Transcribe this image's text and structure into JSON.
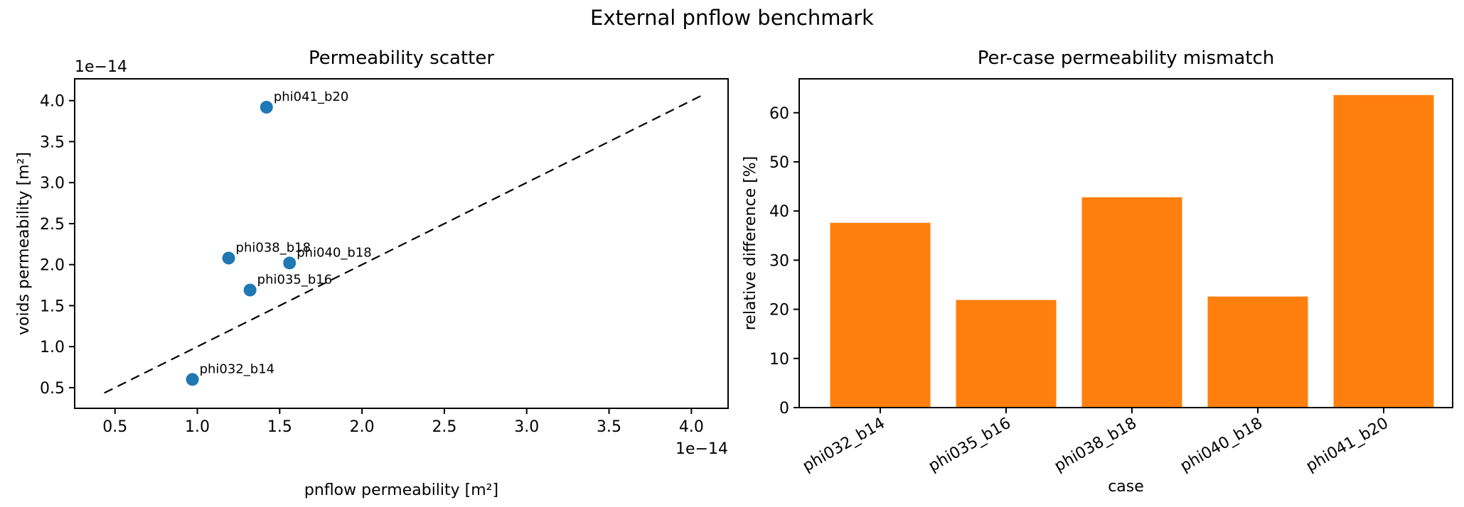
{
  "figure": {
    "suptitle": "External pnflow benchmark",
    "background_color": "#ffffff",
    "text_color": "#000000"
  },
  "chart_data": [
    {
      "type": "scatter",
      "title": "Permeability scatter",
      "xlabel": "pnflow permeability [m²]",
      "ylabel": "voids permeability [m²]",
      "x_offset_label": "1e−14",
      "y_offset_label": "1e−14",
      "axis_units_note": "tick values are multiples of 1e-14 m²",
      "xlim": [
        0.255,
        4.223
      ],
      "ylim": [
        0.248,
        4.266
      ],
      "xticks": [
        0.5,
        1.0,
        1.5,
        2.0,
        2.5,
        3.0,
        3.5,
        4.0
      ],
      "yticks": [
        0.5,
        1.0,
        1.5,
        2.0,
        2.5,
        3.0,
        3.5,
        4.0
      ],
      "marker_color": "#1f77b4",
      "points": [
        {
          "label": "phi032_b14",
          "x": 0.97,
          "y": 0.6
        },
        {
          "label": "phi035_b16",
          "x": 1.32,
          "y": 1.69
        },
        {
          "label": "phi038_b18",
          "x": 1.19,
          "y": 2.08
        },
        {
          "label": "phi040_b18",
          "x": 1.56,
          "y": 2.02
        },
        {
          "label": "phi041_b20",
          "x": 1.42,
          "y": 3.92
        }
      ],
      "identity_line": {
        "start": 0.435,
        "end": 4.07,
        "style": "dashed",
        "color": "#000000"
      }
    },
    {
      "type": "bar",
      "title": "Per-case permeability mismatch",
      "xlabel": "case",
      "ylabel": "relative difference [%]",
      "categories": [
        "phi032_b14",
        "phi035_b16",
        "phi038_b18",
        "phi040_b18",
        "phi041_b20"
      ],
      "values": [
        37.6,
        21.9,
        42.8,
        22.6,
        63.6
      ],
      "yticks": [
        0,
        10,
        20,
        30,
        40,
        50,
        60
      ],
      "ylim": [
        0,
        66.9
      ],
      "bar_color": "#ff7f0e",
      "xtick_label_rotation_deg": 30,
      "legend": null
    }
  ]
}
